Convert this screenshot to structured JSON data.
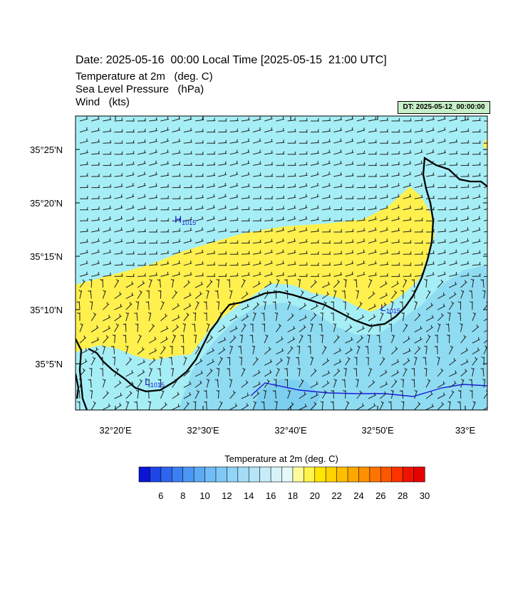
{
  "header": {
    "title": "Date: 2025-05-16  00:00 Local Time [2025-05-15  21:00 UTC]",
    "variables": [
      "Temperature at 2m   (deg. C)",
      "Sea Level Pressure   (hPa)",
      "Wind   (kts)"
    ],
    "dt_badge": "DT: 2025-05-12_00:00:00"
  },
  "map": {
    "lat_labels": [
      "35°25'N",
      "35°20'N",
      "35°15'N",
      "35°10'N",
      "35°5'N"
    ],
    "lon_labels": [
      "32°20'E",
      "32°30'E",
      "32°40'E",
      "32°50'E",
      "33°E"
    ],
    "pressure_centers": [
      {
        "type": "H",
        "letter": "H",
        "value": "1015"
      },
      {
        "type": "L",
        "letter": "L",
        "value": "1015"
      },
      {
        "type": "L",
        "letter": "L",
        "value": "1015"
      }
    ],
    "colors": {
      "sea_cold": "#a6eef5",
      "land_warm": "#fff04d",
      "inland_cool": "#8fdcf2",
      "valley_cool": "#7ccfee",
      "coastline": "#000000",
      "isobar": "#1a1adc"
    }
  },
  "colorbar": {
    "title": "Temperature at 2m  (deg. C)",
    "ticks": [
      "6",
      "8",
      "10",
      "12",
      "14",
      "16",
      "18",
      "20",
      "22",
      "24",
      "26",
      "28",
      "30"
    ],
    "colors": [
      "#0a14d2",
      "#1e46e6",
      "#2e64ee",
      "#3c7ff2",
      "#4c97f4",
      "#5cabf5",
      "#70bdf6",
      "#80c9f7",
      "#92d3f8",
      "#a4dcf8",
      "#b6e4f8",
      "#c6edf9",
      "#d6f3f9",
      "#e6f9fa",
      "#fffb9a",
      "#fff44d",
      "#ffe600",
      "#ffd200",
      "#ffbe00",
      "#ffa800",
      "#ff9000",
      "#ff7400",
      "#ff5600",
      "#ff3200",
      "#f01400",
      "#e60000"
    ]
  }
}
